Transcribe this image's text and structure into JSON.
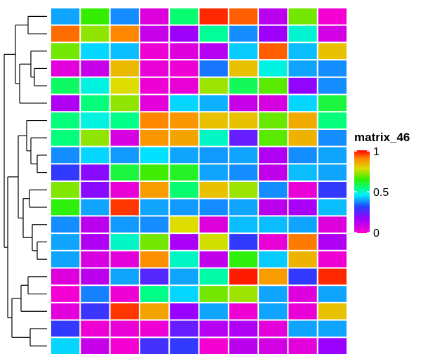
{
  "chart_data": {
    "type": "heatmap",
    "n_rows": 20,
    "n_cols": 10,
    "color_scale": {
      "title": "matrix_46",
      "min": 0,
      "max": 1,
      "ticks": [
        {
          "value": 0,
          "label": "0"
        },
        {
          "value": 0.5,
          "label": "0.5"
        },
        {
          "value": 1,
          "label": "1"
        }
      ],
      "palette": "rainbow magenta-blue-cyan-green-yellow-red"
    },
    "row_dendrogram": true,
    "values": [
      [
        0.4,
        0.65,
        0.38,
        0.06,
        0.56,
        0.97,
        0.93,
        0.12,
        0.7,
        0.02
      ],
      [
        0.92,
        0.72,
        0.9,
        0.1,
        0.17,
        0.53,
        0.38,
        0.17,
        0.49,
        0.08
      ],
      [
        0.7,
        0.44,
        0.42,
        0.03,
        0.06,
        0.13,
        0.43,
        0.93,
        0.42,
        0.82
      ],
      [
        0.05,
        0.1,
        0.83,
        0.04,
        0.03,
        0.36,
        0.82,
        0.48,
        0.4,
        0.38
      ],
      [
        0.57,
        0.48,
        0.78,
        0.03,
        0.04,
        0.73,
        0.58,
        0.68,
        0.19,
        0.38
      ],
      [
        0.14,
        0.55,
        0.72,
        0.05,
        0.44,
        0.41,
        0.1,
        0.07,
        0.44,
        0.6
      ],
      [
        0.55,
        0.48,
        0.54,
        0.9,
        0.88,
        0.82,
        0.82,
        0.69,
        0.85,
        0.55
      ],
      [
        0.55,
        0.72,
        0.07,
        0.88,
        0.86,
        0.5,
        0.24,
        0.68,
        0.84,
        0.38
      ],
      [
        0.38,
        0.44,
        0.39,
        0.45,
        0.4,
        0.39,
        0.4,
        0.14,
        0.38,
        0.4
      ],
      [
        0.3,
        0.2,
        0.6,
        0.66,
        0.62,
        0.4,
        0.38,
        0.11,
        0.42,
        0.4
      ],
      [
        0.71,
        0.2,
        0.04,
        0.87,
        0.56,
        0.82,
        0.73,
        0.38,
        0.04,
        0.3
      ],
      [
        0.64,
        0.4,
        0.96,
        0.4,
        0.39,
        0.38,
        0.4,
        0.12,
        0.15,
        0.42
      ],
      [
        0.38,
        0.12,
        0.39,
        0.38,
        0.78,
        0.06,
        0.42,
        0.42,
        0.4,
        0.06
      ],
      [
        0.4,
        0.14,
        0.5,
        0.7,
        0.15,
        0.77,
        0.3,
        0.04,
        0.91,
        0.14
      ],
      [
        0.4,
        0.07,
        0.05,
        0.89,
        0.5,
        0.11,
        0.64,
        0.43,
        0.84,
        0.03
      ],
      [
        0.06,
        0.12,
        0.4,
        0.26,
        0.4,
        0.52,
        0.98,
        0.87,
        0.3,
        0.97
      ],
      [
        0.02,
        0.37,
        0.03,
        0.54,
        0.44,
        0.7,
        0.73,
        0.4,
        0.06,
        0.4
      ],
      [
        0.05,
        0.29,
        0.96,
        0.86,
        0.18,
        0.4,
        0.03,
        0.4,
        0.04,
        0.82
      ],
      [
        0.3,
        0.03,
        0.04,
        0.03,
        0.24,
        0.13,
        0.14,
        0.05,
        0.4,
        0.4
      ],
      [
        0.44,
        0.1,
        0.02,
        0.28,
        0.3,
        0.02,
        0.12,
        0.08,
        0.05,
        0.18
      ]
    ]
  }
}
